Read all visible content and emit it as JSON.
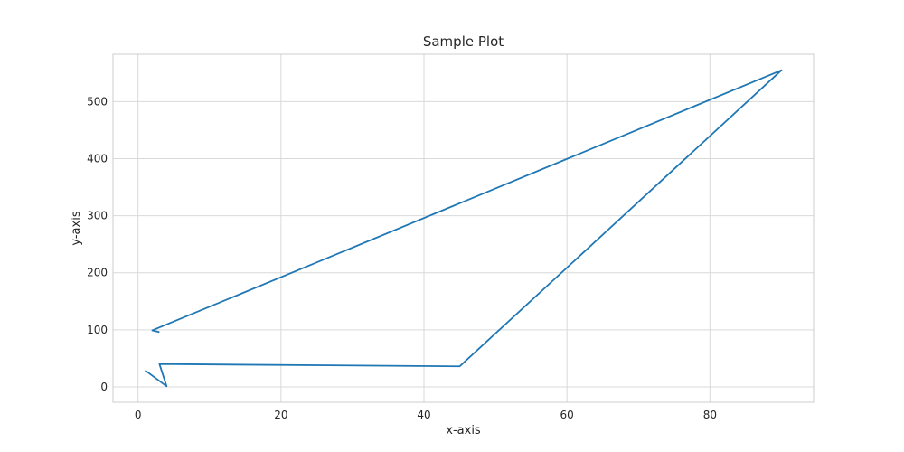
{
  "chart_data": {
    "type": "line",
    "title": "Sample Plot",
    "xlabel": "x-axis",
    "ylabel": "y-axis",
    "xlim": [
      -3.5,
      94.5
    ],
    "ylim": [
      -27,
      583
    ],
    "xticks": [
      0,
      20,
      40,
      60,
      80
    ],
    "yticks": [
      0,
      100,
      200,
      300,
      400,
      500
    ],
    "grid": true,
    "series": [
      {
        "color": "#1f77b4",
        "x": [
          1,
          4,
          3,
          45,
          90,
          2,
          3
        ],
        "y": [
          29,
          1,
          40,
          36,
          555,
          99,
          96
        ]
      }
    ]
  }
}
